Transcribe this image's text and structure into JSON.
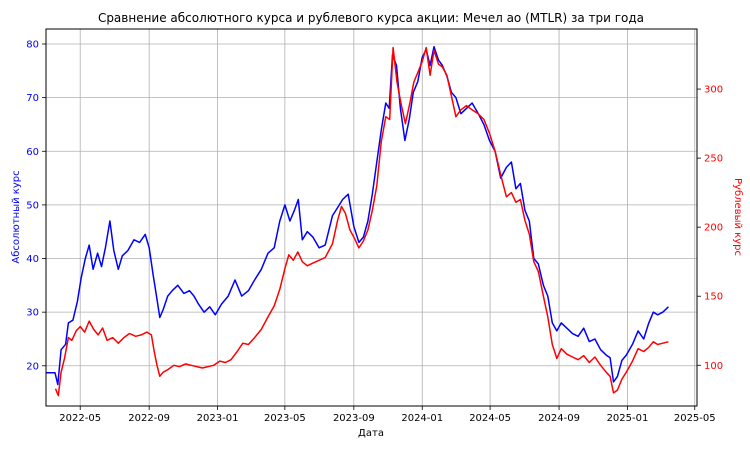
{
  "chart_data": {
    "type": "line",
    "title": "Сравнение абсолютного курса и рублевого курса акции: Мечел ао (MTLR) за три года",
    "xlabel": "Дата",
    "ylabel_left": "Абсолютный курс",
    "ylabel_right": "Рублевый курс",
    "grid": true,
    "x_ticks": [
      "2022-05",
      "2022-09",
      "2023-01",
      "2023-05",
      "2023-09",
      "2024-01",
      "2024-05",
      "2024-09",
      "2025-01",
      "2025-05"
    ],
    "y_left_ticks": [
      20,
      30,
      40,
      50,
      60,
      70,
      80
    ],
    "y_right_ticks": [
      100,
      150,
      200,
      250,
      300
    ],
    "y_left_lim": [
      12.5,
      82.8
    ],
    "y_right_lim": [
      70.5,
      343.5
    ],
    "x_range": [
      "2022-03-01",
      "2025-05-05"
    ],
    "colors": {
      "absolute": "#0000ff",
      "ruble": "#ff0000"
    },
    "series": [
      {
        "axis": "left",
        "points": [
          [
            "2022-03-01",
            18.7
          ],
          [
            "2022-03-17",
            18.7
          ],
          [
            "2022-03-22",
            16.5
          ],
          [
            "2022-03-28",
            23.0
          ],
          [
            "2022-04-05",
            24.0
          ],
          [
            "2022-04-10",
            28.0
          ],
          [
            "2022-04-18",
            28.5
          ],
          [
            "2022-04-26",
            32.0
          ],
          [
            "2022-05-03",
            36.5
          ],
          [
            "2022-05-10",
            40.0
          ],
          [
            "2022-05-17",
            42.5
          ],
          [
            "2022-05-24",
            38.0
          ],
          [
            "2022-06-01",
            41.0
          ],
          [
            "2022-06-08",
            38.5
          ],
          [
            "2022-06-15",
            42.0
          ],
          [
            "2022-06-23",
            47.0
          ],
          [
            "2022-06-30",
            41.5
          ],
          [
            "2022-07-08",
            38.0
          ],
          [
            "2022-07-15",
            40.5
          ],
          [
            "2022-07-25",
            41.5
          ],
          [
            "2022-08-05",
            43.5
          ],
          [
            "2022-08-15",
            43.0
          ],
          [
            "2022-08-25",
            44.5
          ],
          [
            "2022-09-01",
            42.0
          ],
          [
            "2022-09-08",
            37.0
          ],
          [
            "2022-09-14",
            33.0
          ],
          [
            "2022-09-20",
            29.0
          ],
          [
            "2022-09-26",
            30.5
          ],
          [
            "2022-10-04",
            33.0
          ],
          [
            "2022-10-12",
            34.0
          ],
          [
            "2022-10-22",
            35.0
          ],
          [
            "2022-11-02",
            33.5
          ],
          [
            "2022-11-12",
            34.0
          ],
          [
            "2022-11-20",
            33.0
          ],
          [
            "2022-11-28",
            31.5
          ],
          [
            "2022-12-08",
            30.0
          ],
          [
            "2022-12-18",
            31.0
          ],
          [
            "2022-12-28",
            29.5
          ],
          [
            "2023-01-08",
            31.5
          ],
          [
            "2023-01-20",
            33.0
          ],
          [
            "2023-02-01",
            36.0
          ],
          [
            "2023-02-13",
            33.0
          ],
          [
            "2023-02-25",
            34.0
          ],
          [
            "2023-03-08",
            36.0
          ],
          [
            "2023-03-20",
            38.0
          ],
          [
            "2023-04-01",
            41.0
          ],
          [
            "2023-04-12",
            42.0
          ],
          [
            "2023-04-22",
            47.0
          ],
          [
            "2023-05-01",
            50.0
          ],
          [
            "2023-05-10",
            47.0
          ],
          [
            "2023-05-18",
            49.0
          ],
          [
            "2023-05-25",
            51.0
          ],
          [
            "2023-06-01",
            43.5
          ],
          [
            "2023-06-10",
            45.0
          ],
          [
            "2023-06-20",
            44.0
          ],
          [
            "2023-07-01",
            42.0
          ],
          [
            "2023-07-12",
            42.5
          ],
          [
            "2023-07-25",
            48.0
          ],
          [
            "2023-08-03",
            49.5
          ],
          [
            "2023-08-12",
            51.0
          ],
          [
            "2023-08-22",
            52.0
          ],
          [
            "2023-09-01",
            46.0
          ],
          [
            "2023-09-10",
            43.0
          ],
          [
            "2023-09-18",
            44.0
          ],
          [
            "2023-09-26",
            47.0
          ],
          [
            "2023-10-04",
            52.0
          ],
          [
            "2023-10-12",
            58.0
          ],
          [
            "2023-10-20",
            64.0
          ],
          [
            "2023-10-28",
            69.0
          ],
          [
            "2023-11-03",
            68.0
          ],
          [
            "2023-11-09",
            78.0
          ],
          [
            "2023-11-16",
            76.0
          ],
          [
            "2023-11-23",
            68.0
          ],
          [
            "2023-12-01",
            62.0
          ],
          [
            "2023-12-09",
            66.0
          ],
          [
            "2023-12-16",
            71.0
          ],
          [
            "2023-12-24",
            73.0
          ],
          [
            "2024-01-01",
            77.5
          ],
          [
            "2024-01-08",
            79.0
          ],
          [
            "2024-01-15",
            76.0
          ],
          [
            "2024-01-22",
            79.5
          ],
          [
            "2024-01-30",
            77.0
          ],
          [
            "2024-02-06",
            76.0
          ],
          [
            "2024-02-14",
            74.0
          ],
          [
            "2024-02-22",
            71.0
          ],
          [
            "2024-03-01",
            70.0
          ],
          [
            "2024-03-10",
            67.0
          ],
          [
            "2024-03-20",
            68.0
          ],
          [
            "2024-03-30",
            69.0
          ],
          [
            "2024-04-10",
            67.0
          ],
          [
            "2024-04-20",
            65.0
          ],
          [
            "2024-04-30",
            62.0
          ],
          [
            "2024-05-10",
            60.0
          ],
          [
            "2024-05-20",
            55.0
          ],
          [
            "2024-05-30",
            57.0
          ],
          [
            "2024-06-08",
            58.0
          ],
          [
            "2024-06-16",
            53.0
          ],
          [
            "2024-06-24",
            54.0
          ],
          [
            "2024-07-02",
            49.0
          ],
          [
            "2024-07-10",
            47.0
          ],
          [
            "2024-07-18",
            40.0
          ],
          [
            "2024-07-26",
            39.0
          ],
          [
            "2024-08-04",
            35.0
          ],
          [
            "2024-08-12",
            33.0
          ],
          [
            "2024-08-20",
            28.0
          ],
          [
            "2024-08-28",
            26.5
          ],
          [
            "2024-09-05",
            28.0
          ],
          [
            "2024-09-15",
            27.0
          ],
          [
            "2024-09-25",
            26.0
          ],
          [
            "2024-10-05",
            25.5
          ],
          [
            "2024-10-15",
            27.0
          ],
          [
            "2024-10-25",
            24.5
          ],
          [
            "2024-11-04",
            25.0
          ],
          [
            "2024-11-14",
            23.0
          ],
          [
            "2024-11-24",
            22.0
          ],
          [
            "2024-12-01",
            21.5
          ],
          [
            "2024-12-07",
            17.0
          ],
          [
            "2024-12-14",
            18.0
          ],
          [
            "2024-12-22",
            21.0
          ],
          [
            "2024-12-30",
            22.0
          ],
          [
            "2025-01-10",
            24.0
          ],
          [
            "2025-01-20",
            26.5
          ],
          [
            "2025-01-30",
            25.0
          ],
          [
            "2025-02-08",
            28.0
          ],
          [
            "2025-02-16",
            30.0
          ],
          [
            "2025-02-24",
            29.5
          ],
          [
            "2025-03-05",
            30.0
          ],
          [
            "2025-03-15",
            31.0
          ]
        ]
      },
      {
        "axis": "right",
        "points": [
          [
            "2022-03-18",
            83.0
          ],
          [
            "2022-03-23",
            78.0
          ],
          [
            "2022-03-28",
            95.0
          ],
          [
            "2022-04-03",
            105.0
          ],
          [
            "2022-04-10",
            120.0
          ],
          [
            "2022-04-16",
            118.0
          ],
          [
            "2022-04-24",
            125.0
          ],
          [
            "2022-05-01",
            128.0
          ],
          [
            "2022-05-09",
            124.0
          ],
          [
            "2022-05-17",
            132.0
          ],
          [
            "2022-05-25",
            126.0
          ],
          [
            "2022-06-02",
            122.0
          ],
          [
            "2022-06-10",
            127.0
          ],
          [
            "2022-06-18",
            118.0
          ],
          [
            "2022-06-28",
            120.0
          ],
          [
            "2022-07-08",
            116.0
          ],
          [
            "2022-07-18",
            120.0
          ],
          [
            "2022-07-28",
            123.0
          ],
          [
            "2022-08-08",
            121.0
          ],
          [
            "2022-08-18",
            122.0
          ],
          [
            "2022-08-28",
            124.0
          ],
          [
            "2022-09-05",
            122.0
          ],
          [
            "2022-09-10",
            110.0
          ],
          [
            "2022-09-15",
            100.0
          ],
          [
            "2022-09-20",
            92.0
          ],
          [
            "2022-09-26",
            95.0
          ],
          [
            "2022-10-05",
            97.0
          ],
          [
            "2022-10-15",
            100.0
          ],
          [
            "2022-10-25",
            99.0
          ],
          [
            "2022-11-05",
            101.0
          ],
          [
            "2022-11-15",
            100.0
          ],
          [
            "2022-11-25",
            99.0
          ],
          [
            "2022-12-05",
            98.0
          ],
          [
            "2022-12-15",
            99.0
          ],
          [
            "2022-12-25",
            100.0
          ],
          [
            "2023-01-05",
            103.0
          ],
          [
            "2023-01-15",
            102.0
          ],
          [
            "2023-01-25",
            104.0
          ],
          [
            "2023-02-05",
            110.0
          ],
          [
            "2023-02-15",
            116.0
          ],
          [
            "2023-02-25",
            115.0
          ],
          [
            "2023-03-08",
            120.0
          ],
          [
            "2023-03-20",
            126.0
          ],
          [
            "2023-04-01",
            135.0
          ],
          [
            "2023-04-12",
            143.0
          ],
          [
            "2023-04-22",
            155.0
          ],
          [
            "2023-05-01",
            170.0
          ],
          [
            "2023-05-08",
            180.0
          ],
          [
            "2023-05-16",
            176.0
          ],
          [
            "2023-05-24",
            182.0
          ],
          [
            "2023-06-01",
            175.0
          ],
          [
            "2023-06-10",
            172.0
          ],
          [
            "2023-06-20",
            174.0
          ],
          [
            "2023-07-01",
            176.0
          ],
          [
            "2023-07-12",
            178.0
          ],
          [
            "2023-07-25",
            188.0
          ],
          [
            "2023-08-03",
            205.0
          ],
          [
            "2023-08-10",
            215.0
          ],
          [
            "2023-08-17",
            210.0
          ],
          [
            "2023-08-25",
            198.0
          ],
          [
            "2023-09-02",
            192.0
          ],
          [
            "2023-09-10",
            185.0
          ],
          [
            "2023-09-18",
            190.0
          ],
          [
            "2023-09-26",
            198.0
          ],
          [
            "2023-10-04",
            212.0
          ],
          [
            "2023-10-12",
            230.0
          ],
          [
            "2023-10-20",
            262.0
          ],
          [
            "2023-10-28",
            280.0
          ],
          [
            "2023-11-04",
            278.0
          ],
          [
            "2023-11-10",
            330.0
          ],
          [
            "2023-11-17",
            305.0
          ],
          [
            "2023-11-24",
            290.0
          ],
          [
            "2023-12-02",
            275.0
          ],
          [
            "2023-12-10",
            290.0
          ],
          [
            "2023-12-17",
            305.0
          ],
          [
            "2023-12-24",
            312.0
          ],
          [
            "2024-01-01",
            320.0
          ],
          [
            "2024-01-08",
            330.0
          ],
          [
            "2024-01-15",
            310.0
          ],
          [
            "2024-01-22",
            328.0
          ],
          [
            "2024-01-30",
            318.0
          ],
          [
            "2024-02-06",
            316.0
          ],
          [
            "2024-02-14",
            310.0
          ],
          [
            "2024-02-22",
            295.0
          ],
          [
            "2024-03-01",
            280.0
          ],
          [
            "2024-03-10",
            285.0
          ],
          [
            "2024-03-20",
            288.0
          ],
          [
            "2024-03-30",
            285.0
          ],
          [
            "2024-04-10",
            282.0
          ],
          [
            "2024-04-20",
            278.0
          ],
          [
            "2024-04-30",
            268.0
          ],
          [
            "2024-05-10",
            255.0
          ],
          [
            "2024-05-20",
            238.0
          ],
          [
            "2024-05-30",
            222.0
          ],
          [
            "2024-06-08",
            225.0
          ],
          [
            "2024-06-16",
            218.0
          ],
          [
            "2024-06-24",
            220.0
          ],
          [
            "2024-07-02",
            205.0
          ],
          [
            "2024-07-10",
            195.0
          ],
          [
            "2024-07-18",
            175.0
          ],
          [
            "2024-07-26",
            168.0
          ],
          [
            "2024-08-04",
            150.0
          ],
          [
            "2024-08-12",
            135.0
          ],
          [
            "2024-08-20",
            115.0
          ],
          [
            "2024-08-28",
            105.0
          ],
          [
            "2024-09-05",
            112.0
          ],
          [
            "2024-09-15",
            108.0
          ],
          [
            "2024-09-25",
            106.0
          ],
          [
            "2024-10-05",
            104.0
          ],
          [
            "2024-10-15",
            107.0
          ],
          [
            "2024-10-25",
            102.0
          ],
          [
            "2024-11-04",
            106.0
          ],
          [
            "2024-11-14",
            100.0
          ],
          [
            "2024-11-24",
            95.0
          ],
          [
            "2024-12-01",
            92.0
          ],
          [
            "2024-12-07",
            80.0
          ],
          [
            "2024-12-14",
            82.0
          ],
          [
            "2024-12-22",
            90.0
          ],
          [
            "2024-12-30",
            95.0
          ],
          [
            "2025-01-10",
            103.0
          ],
          [
            "2025-01-20",
            112.0
          ],
          [
            "2025-01-30",
            110.0
          ],
          [
            "2025-02-08",
            113.0
          ],
          [
            "2025-02-16",
            117.0
          ],
          [
            "2025-02-24",
            115.0
          ],
          [
            "2025-03-05",
            116.0
          ],
          [
            "2025-03-15",
            117.0
          ]
        ]
      }
    ]
  }
}
